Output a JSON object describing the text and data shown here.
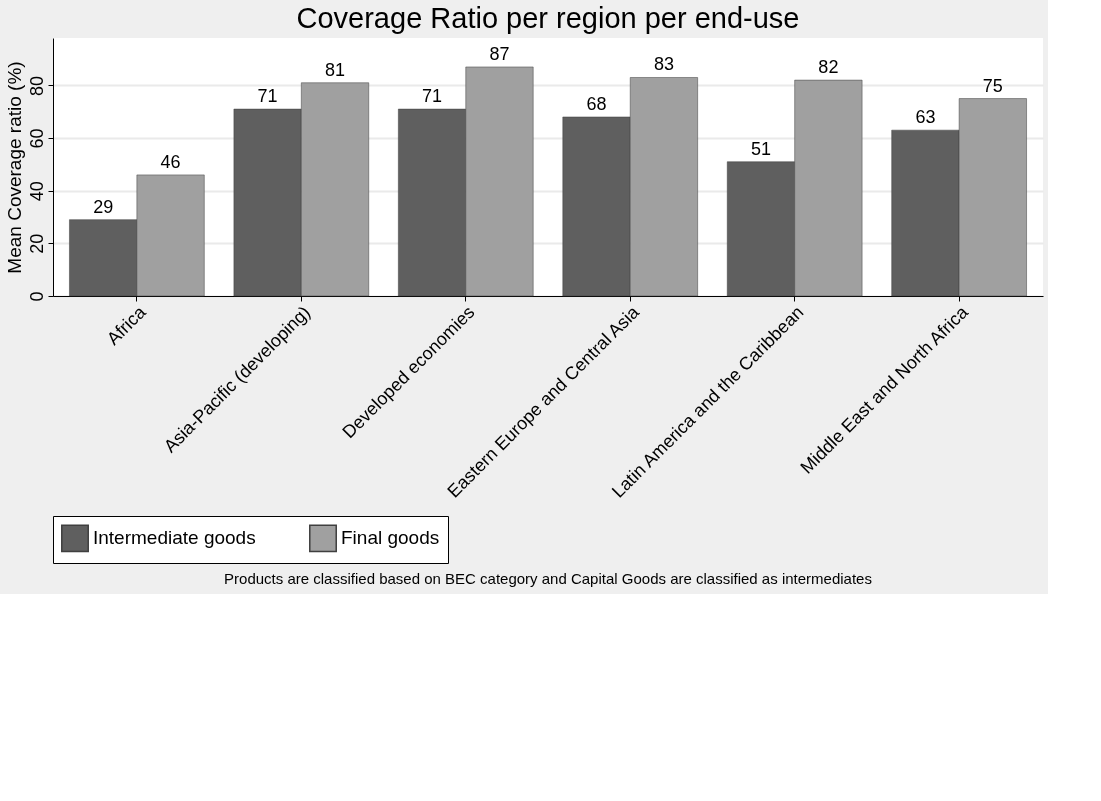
{
  "chart_data": {
    "type": "bar",
    "title": "Coverage Ratio per region per end-use",
    "ylabel": "Mean Coverage ratio (%)",
    "categories": [
      "Africa",
      "Asia-Pacific (developing)",
      "Developed economies",
      "Eastern Europe and Central Asia",
      "Latin America and the Caribbean",
      "Middle East and North Africa"
    ],
    "series": [
      {
        "name": "Intermediate goods",
        "color": "#5f5f5f",
        "values": [
          29,
          71,
          71,
          68,
          51,
          63
        ]
      },
      {
        "name": "Final goods",
        "color": "#a0a0a0",
        "values": [
          46,
          81,
          87,
          83,
          82,
          75
        ]
      }
    ],
    "ylim": [
      0,
      98
    ],
    "yticks": [
      0,
      20,
      40,
      60,
      80
    ],
    "grid": "y",
    "legend": "bottom",
    "data_labels": true,
    "annotations": [
      "Products are classified based on BEC category and Capital Goods are classified as intermediates"
    ]
  }
}
